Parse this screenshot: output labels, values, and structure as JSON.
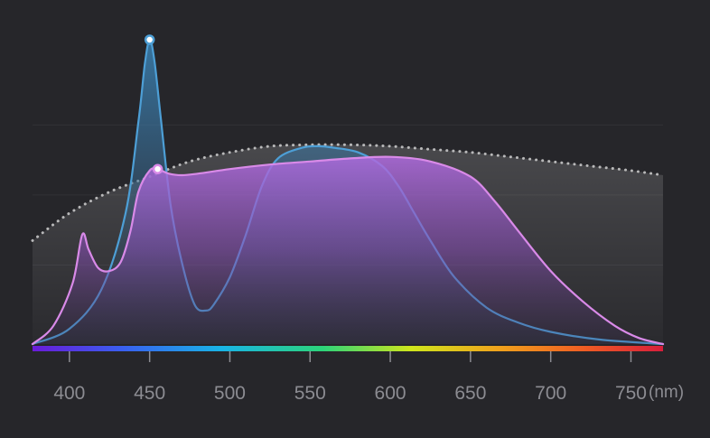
{
  "chart_data": {
    "type": "area",
    "title": "",
    "xlabel": "",
    "ylabel": "",
    "x_unit": "(nm)",
    "xlim": [
      377,
      770
    ],
    "ylim": [
      0,
      1
    ],
    "x_ticks": [
      400,
      450,
      500,
      550,
      600,
      650,
      700,
      750
    ],
    "y_gridlines": [
      0.26,
      0.49,
      0.72
    ],
    "grid": true,
    "legend": "none",
    "colors": {
      "background": "#26262a",
      "blue_series": "#4d9fd6",
      "pink_series": "#d98ae8",
      "dotted_series": "#d0d0d0",
      "spectrum_bar": [
        "#6a1bd8",
        "#3a5ef0",
        "#19b4e6",
        "#2cd47a",
        "#cfe61c",
        "#f0a21c",
        "#ef5a24",
        "#d81e3c"
      ]
    },
    "series": [
      {
        "style": "dotted",
        "x": [
          377,
          400,
          425,
          450,
          475,
          500,
          525,
          550,
          575,
          600,
          625,
          650,
          675,
          700,
          725,
          750,
          770
        ],
        "values": [
          0.34,
          0.43,
          0.5,
          0.55,
          0.6,
          0.63,
          0.65,
          0.655,
          0.655,
          0.65,
          0.64,
          0.63,
          0.615,
          0.6,
          0.585,
          0.57,
          0.555
        ]
      },
      {
        "style": "filled-blue",
        "marker_x": 450,
        "x": [
          377,
          400,
          420,
          435,
          443,
          447,
          450,
          453,
          457,
          463,
          470,
          478,
          485,
          490,
          500,
          510,
          520,
          530,
          545,
          555,
          565,
          580,
          595,
          605,
          615,
          625,
          640,
          660,
          680,
          700,
          730,
          770
        ],
        "values": [
          0.0,
          0.05,
          0.18,
          0.43,
          0.73,
          0.92,
          1.0,
          0.93,
          0.74,
          0.46,
          0.27,
          0.13,
          0.11,
          0.13,
          0.22,
          0.36,
          0.52,
          0.61,
          0.645,
          0.65,
          0.645,
          0.63,
          0.585,
          0.52,
          0.43,
          0.34,
          0.22,
          0.12,
          0.07,
          0.04,
          0.015,
          0.0
        ]
      },
      {
        "style": "filled-pink",
        "marker_x": 455,
        "x": [
          377,
          390,
          402,
          408,
          412,
          418,
          425,
          432,
          438,
          443,
          450,
          455,
          462,
          470,
          480,
          500,
          525,
          550,
          575,
          600,
          625,
          650,
          665,
          680,
          700,
          720,
          740,
          755,
          770
        ],
        "values": [
          0.0,
          0.06,
          0.2,
          0.36,
          0.31,
          0.25,
          0.24,
          0.27,
          0.37,
          0.5,
          0.57,
          0.575,
          0.56,
          0.555,
          0.56,
          0.575,
          0.59,
          0.6,
          0.61,
          0.615,
          0.6,
          0.55,
          0.47,
          0.37,
          0.24,
          0.14,
          0.06,
          0.02,
          0.0
        ]
      }
    ]
  }
}
